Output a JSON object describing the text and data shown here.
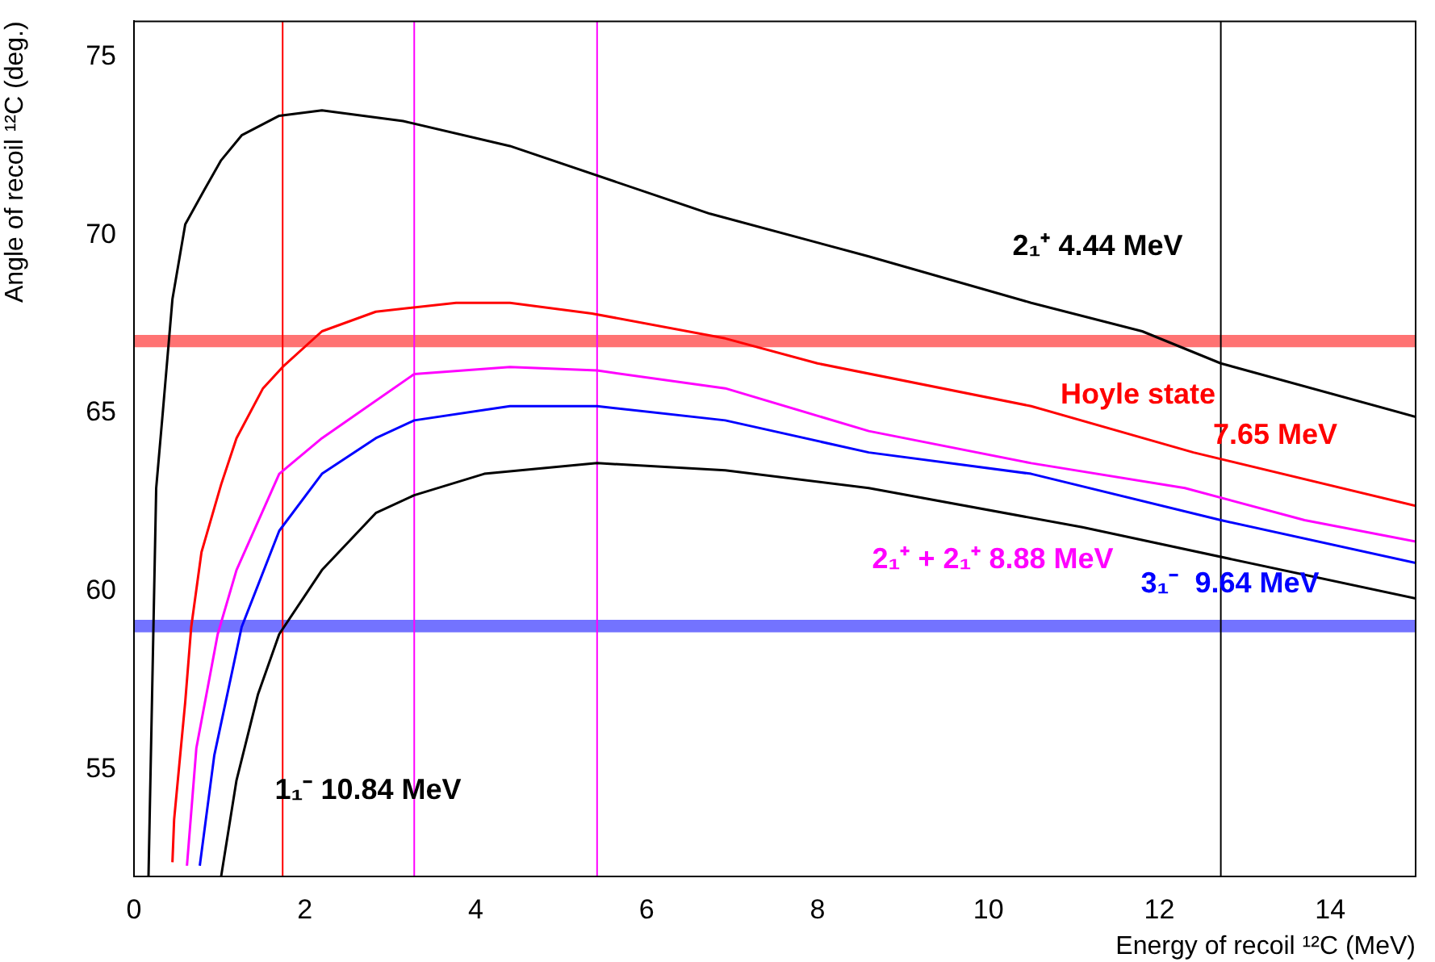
{
  "chart_data": {
    "type": "line",
    "xlabel": "Energy of recoil ¹²C (MeV)",
    "ylabel": "Angle of recoil ¹²C (deg.)",
    "xlim": [
      0,
      15
    ],
    "xticks": [
      0,
      2,
      4,
      6,
      8,
      10,
      12,
      14
    ],
    "ylim": [
      52,
      76
    ],
    "yticks": [
      55,
      60,
      65,
      70,
      75
    ],
    "grid": false,
    "legend": false,
    "marker": "none",
    "line_style": "solid",
    "series": [
      {
        "name": "2₁⁺ 4.44 MeV",
        "color": "#000000",
        "x": [
          0.17,
          0.26,
          0.34,
          0.45,
          0.6,
          0.83,
          1.02,
          1.26,
          1.7,
          2.2,
          3.15,
          4.4,
          6.74,
          8.6,
          10.5,
          11.8,
          12.72,
          15
        ],
        "values": [
          52.0,
          62.9,
          65.1,
          68.2,
          70.3,
          71.3,
          72.1,
          72.8,
          73.35,
          73.5,
          73.2,
          72.5,
          70.6,
          69.4,
          68.1,
          67.3,
          66.4,
          64.9
        ]
      },
      {
        "name": "Hoyle state 7.65 MeV",
        "color": "#ff0000",
        "x": [
          0.45,
          0.47,
          0.6,
          0.67,
          0.79,
          1.02,
          1.2,
          1.51,
          1.74,
          2.2,
          2.83,
          3.77,
          4.4,
          5.36,
          6.92,
          8.0,
          10.5,
          12.4,
          15
        ],
        "values": [
          52.4,
          53.6,
          56.9,
          59.0,
          61.1,
          63.0,
          64.3,
          65.7,
          66.3,
          67.3,
          67.85,
          68.1,
          68.1,
          67.8,
          67.1,
          66.4,
          65.2,
          63.9,
          62.4
        ]
      },
      {
        "name": "2₁⁺ + 2₁⁺ 8.88 MeV",
        "color": "#ff00ff",
        "x": [
          0.62,
          0.73,
          0.98,
          1.2,
          1.7,
          2.2,
          3.28,
          4.4,
          5.42,
          6.92,
          8.6,
          10.5,
          12.3,
          13.7,
          15
        ],
        "values": [
          52.3,
          55.6,
          58.8,
          60.6,
          63.3,
          64.3,
          66.1,
          66.3,
          66.2,
          65.7,
          64.5,
          63.6,
          62.9,
          62.0,
          61.4
        ]
      },
      {
        "name": "3₁⁻  9.64 MeV",
        "color": "#0000ff",
        "x": [
          0.77,
          0.94,
          1.26,
          1.7,
          2.2,
          2.83,
          3.28,
          4.4,
          5.42,
          6.92,
          8.6,
          10.5,
          12.72,
          15
        ],
        "values": [
          52.3,
          55.4,
          59.0,
          61.7,
          63.3,
          64.3,
          64.8,
          65.2,
          65.2,
          64.8,
          63.9,
          63.3,
          62.0,
          60.8
        ]
      },
      {
        "name": "1₁⁻ 10.84 MeV",
        "color": "#000000",
        "x": [
          1.02,
          1.2,
          1.45,
          1.7,
          2.2,
          2.83,
          3.28,
          4.1,
          5.42,
          6.92,
          8.6,
          11.1,
          15
        ],
        "values": [
          52.0,
          54.7,
          57.1,
          58.8,
          60.6,
          62.2,
          62.7,
          63.3,
          63.6,
          63.4,
          62.9,
          61.8,
          59.8
        ]
      }
    ],
    "bands": [
      {
        "axis": "y",
        "from": 66.85,
        "to": 67.2,
        "color": "#ff0000"
      },
      {
        "axis": "y",
        "from": 58.85,
        "to": 59.2,
        "color": "#0000ff"
      }
    ],
    "ref_lines": [
      {
        "axis": "x",
        "value": 1.74,
        "color": "#ff0000"
      },
      {
        "axis": "x",
        "value": 3.28,
        "color": "#ff00ff"
      },
      {
        "axis": "x",
        "value": 5.42,
        "color": "#ff00ff"
      },
      {
        "axis": "x",
        "value": 12.72,
        "color": "#000000"
      }
    ]
  }
}
